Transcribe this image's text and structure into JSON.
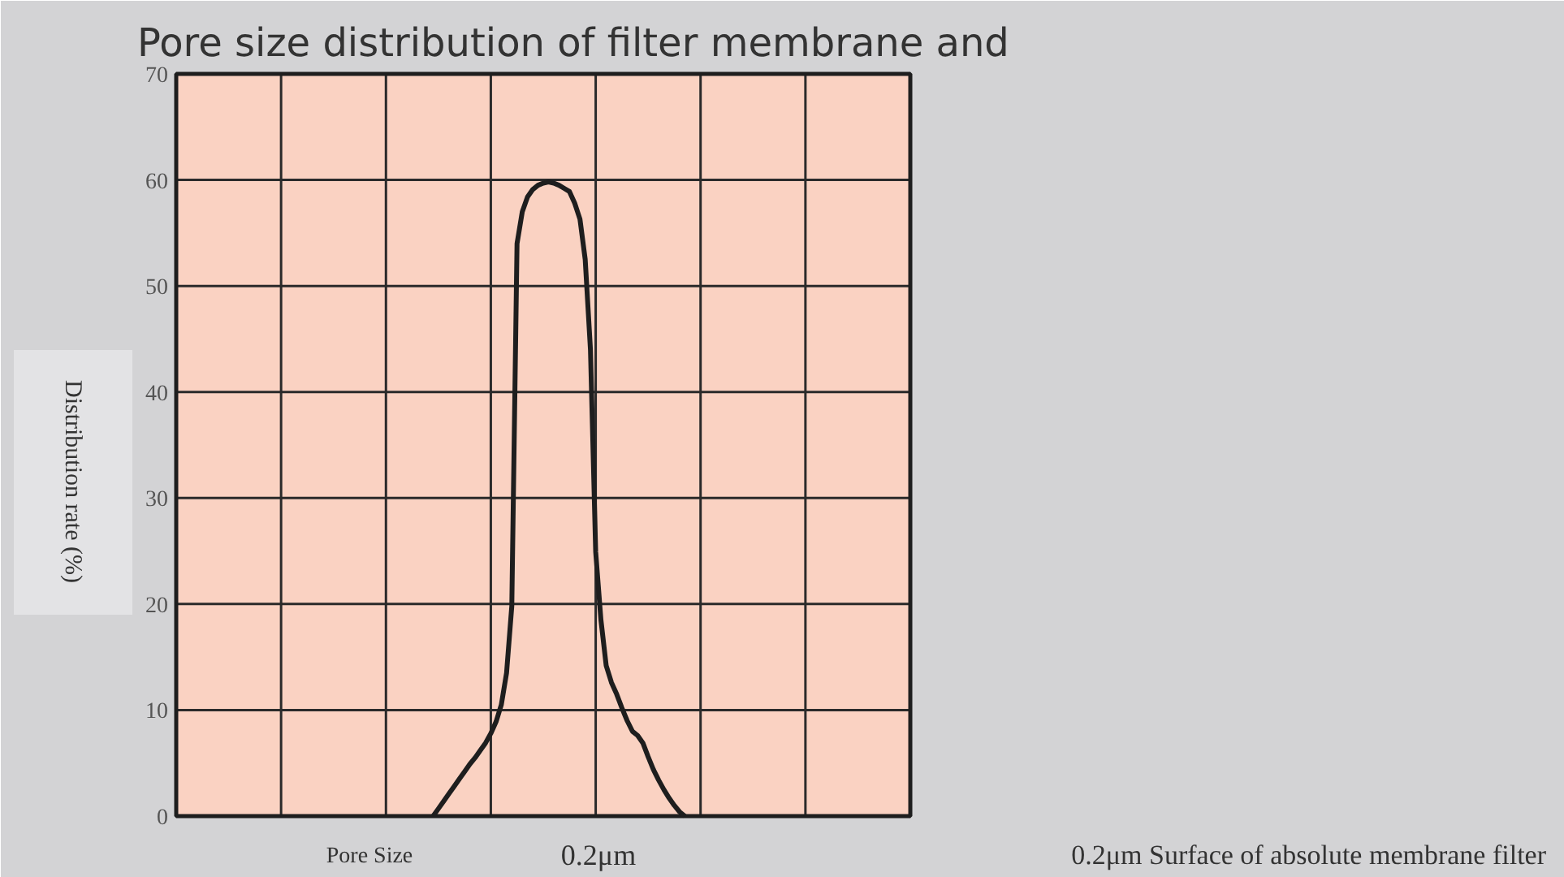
{
  "chart_data": {
    "type": "line",
    "title": "Pore size distribution of filter membrane and",
    "xlabel": "Pore Size",
    "ylabel": "Distribution rate (%)",
    "categories": [
      null,
      null,
      null,
      null,
      null,
      null,
      null,
      null,
      null,
      null,
      null,
      null,
      null,
      null,
      null,
      null,
      null,
      null,
      null,
      null,
      null,
      null,
      null,
      null,
      null,
      null,
      null,
      null,
      null,
      null,
      null,
      null,
      null,
      null,
      null,
      null,
      null,
      null,
      null,
      null,
      null,
      null,
      null,
      null,
      null,
      null,
      null,
      null,
      null,
      null,
      null,
      null,
      null,
      null,
      null,
      null,
      null,
      null,
      null,
      null,
      null,
      null,
      null,
      null,
      null,
      null,
      null,
      null,
      null,
      null,
      null,
      null,
      null,
      null,
      null,
      null,
      null,
      null,
      null,
      null,
      null,
      null,
      null,
      null,
      null,
      null,
      null,
      null,
      null,
      null,
      null,
      null,
      null,
      null,
      null,
      null,
      null,
      null,
      null,
      null,
      null,
      null,
      null,
      null,
      null,
      null,
      null,
      null,
      null,
      null,
      null,
      null,
      null,
      null,
      null,
      null,
      null,
      null,
      null,
      null,
      null,
      null,
      null,
      null,
      null,
      null,
      null,
      null,
      null,
      null,
      null,
      null,
      null,
      null,
      null,
      null,
      null,
      null,
      null,
      null,
      null
    ],
    "series": [
      {
        "color": "#1e1e1e",
        "values": [
          null,
          null,
          null,
          null,
          null,
          null,
          null,
          null,
          null,
          null,
          null,
          null,
          null,
          null,
          null,
          null,
          null,
          null,
          null,
          null,
          null,
          null,
          null,
          null,
          null,
          null,
          null,
          null,
          null,
          null,
          null,
          null,
          null,
          null,
          null,
          null,
          null,
          null,
          null,
          null,
          null,
          null,
          null,
          null,
          null,
          null,
          null,
          null,
          null,
          0,
          0.7,
          1.4,
          2.1,
          2.8,
          3.5,
          4.2,
          4.9,
          5.5,
          6.2,
          6.9,
          7.8,
          8.9,
          10.5,
          13.5,
          19.8,
          54,
          57,
          58.4,
          59.1,
          59.5,
          59.7,
          59.8,
          59.7,
          59.5,
          59.2,
          58.9,
          57.8,
          56.3,
          52.5,
          44,
          24.9,
          18.5,
          14.2,
          12.6,
          11.5,
          10.2,
          9,
          8,
          7.6,
          6.9,
          5.6,
          4.4,
          3.4,
          2.5,
          1.7,
          1,
          0.4,
          0,
          null,
          null,
          null,
          null,
          null,
          null,
          null,
          null,
          null,
          null,
          null,
          null,
          null,
          null,
          null,
          null,
          null,
          null,
          null,
          null,
          null,
          null,
          null,
          null,
          null,
          null,
          null,
          null,
          null,
          null,
          null,
          null,
          null,
          null,
          null,
          null,
          null,
          null,
          null,
          null,
          null,
          null,
          null
        ]
      }
    ],
    "ylim": [
      0,
      70
    ],
    "yticks": [
      0,
      10,
      20,
      30,
      40,
      50,
      60,
      70
    ],
    "grid": true,
    "line_style": "solid",
    "annotations": [
      "0.2μm",
      "0.2μm   Surface of absolute membrane filter"
    ]
  }
}
